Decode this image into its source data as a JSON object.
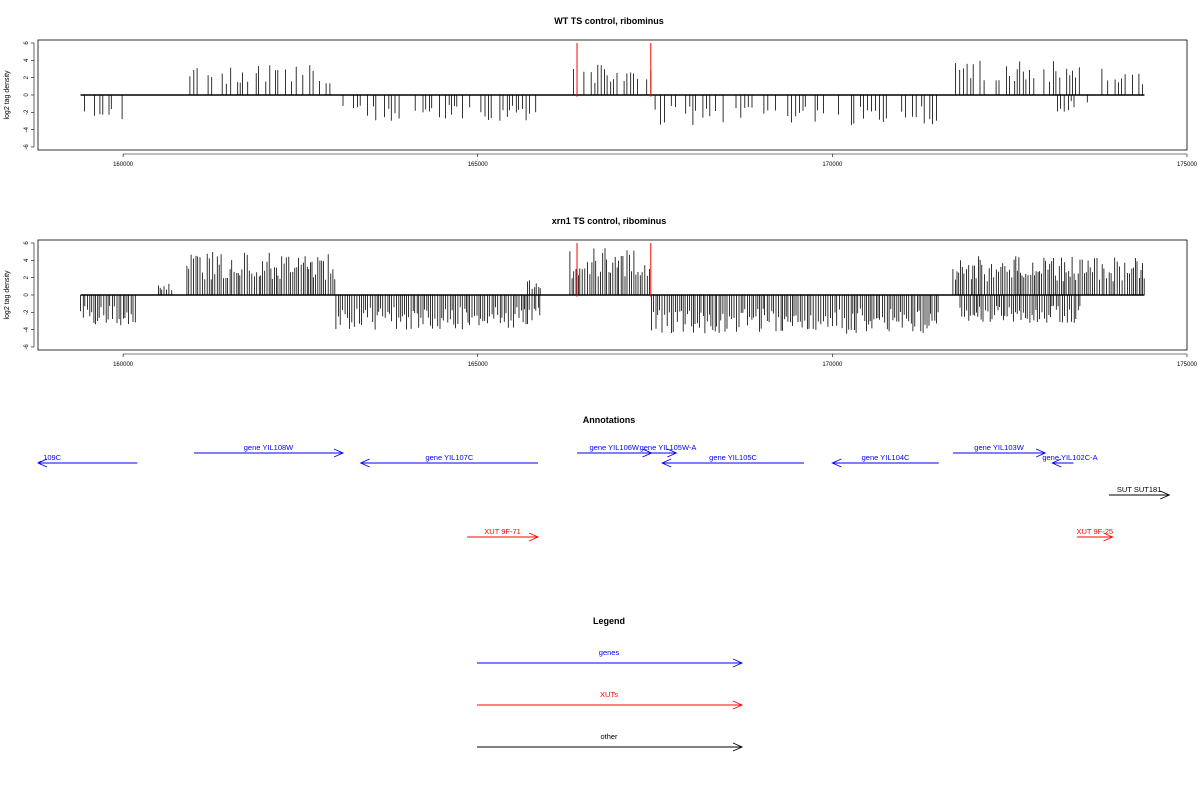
{
  "chart_data": [
    {
      "type": "bar",
      "title": "WT TS control, ribominus",
      "ylabel": "log2 tag density",
      "xlabel": "",
      "xlim": [
        158800,
        175000
      ],
      "ylim": [
        -6,
        6
      ],
      "xticks": [
        160000,
        165000,
        170000,
        175000
      ],
      "yticks": [
        -6,
        -4,
        -2,
        0,
        2,
        4,
        6
      ],
      "data_span": [
        159400,
        174400
      ],
      "highlight_positions": [
        166400,
        167440
      ],
      "highlight_color": "#ff0000",
      "bar_color": "#000000",
      "segments": [
        {
          "x0": 159400,
          "x1": 160200,
          "level": -3.5
        },
        {
          "x0": 160800,
          "x1": 163000,
          "level": 3.5
        },
        {
          "x0": 163100,
          "x1": 165900,
          "level": -3.0
        },
        {
          "x0": 166350,
          "x1": 167500,
          "level": 3.5
        },
        {
          "x0": 167500,
          "x1": 171500,
          "level": -3.5
        },
        {
          "x0": 171700,
          "x1": 173500,
          "level": 4.0
        },
        {
          "x0": 173100,
          "x1": 173600,
          "level": -2.0
        },
        {
          "x0": 173800,
          "x1": 174400,
          "level": 3.5
        }
      ]
    },
    {
      "type": "bar",
      "title": "xrn1 TS control, ribominus",
      "ylabel": "log2 tag density",
      "xlabel": "",
      "xlim": [
        158800,
        175000
      ],
      "ylim": [
        -6,
        6
      ],
      "xticks": [
        160000,
        165000,
        170000,
        175000
      ],
      "yticks": [
        -6,
        -4,
        -2,
        0,
        2,
        4,
        6
      ],
      "data_span": [
        159400,
        174400
      ],
      "highlight_positions": [
        166400,
        167440
      ],
      "highlight_color": "#ff0000",
      "bar_color": "#000000",
      "segments": [
        {
          "x0": 159400,
          "x1": 160200,
          "level": -3.5
        },
        {
          "x0": 160500,
          "x1": 160700,
          "level": 1.5
        },
        {
          "x0": 160900,
          "x1": 163000,
          "level": 5.0
        },
        {
          "x0": 163000,
          "x1": 165900,
          "level": -4.0
        },
        {
          "x0": 165700,
          "x1": 165900,
          "level": 2.0
        },
        {
          "x0": 166300,
          "x1": 167450,
          "level": 5.5
        },
        {
          "x0": 167450,
          "x1": 171500,
          "level": -4.5
        },
        {
          "x0": 171700,
          "x1": 174400,
          "level": 4.5
        },
        {
          "x0": 171800,
          "x1": 173500,
          "level": -3.5
        }
      ]
    }
  ],
  "annotations": {
    "title": "Annotations",
    "features": [
      {
        "label": "_109C",
        "start": 158800,
        "end": 160200,
        "strand": "-",
        "color": "#0000ff",
        "row": 1
      },
      {
        "label": "gene YIL108W",
        "start": 161000,
        "end": 163100,
        "strand": "+",
        "color": "#0000ff",
        "row": 0
      },
      {
        "label": "gene YIL107C",
        "start": 163350,
        "end": 165850,
        "strand": "-",
        "color": "#0000ff",
        "row": 1
      },
      {
        "label": "gene YIL106W",
        "start": 166400,
        "end": 167450,
        "strand": "+",
        "color": "#0000ff",
        "row": 0
      },
      {
        "label": "gene YIL105W-A",
        "start": 167450,
        "end": 167800,
        "strand": "+",
        "color": "#0000ff",
        "row": 0
      },
      {
        "label": "gene YIL105C",
        "start": 167600,
        "end": 169600,
        "strand": "-",
        "color": "#0000ff",
        "row": 1
      },
      {
        "label": "gene YIL104C",
        "start": 170000,
        "end": 171500,
        "strand": "-",
        "color": "#0000ff",
        "row": 1
      },
      {
        "label": "gene YIL103W",
        "start": 171700,
        "end": 173000,
        "strand": "+",
        "color": "#0000ff",
        "row": 0
      },
      {
        "label": "gene YIL102C-A",
        "start": 173100,
        "end": 173400,
        "strand": "-",
        "color": "#0000ff",
        "row": 1
      },
      {
        "label": "SUT SUT181",
        "start": 173900,
        "end": 174750,
        "strand": "+",
        "color": "#000000",
        "row": 2
      },
      {
        "label": "XUT 9F-71",
        "start": 164850,
        "end": 165850,
        "strand": "+",
        "color": "#ff0000",
        "row": 3
      },
      {
        "label": "XUT 9F-25",
        "start": 173450,
        "end": 173950,
        "strand": "+",
        "color": "#ff0000",
        "row": 3
      }
    ]
  },
  "legend": {
    "title": "Legend",
    "items": [
      {
        "label": "genes",
        "color": "#0000ff"
      },
      {
        "label": "XUTs",
        "color": "#ff0000"
      },
      {
        "label": "other",
        "color": "#000000"
      }
    ]
  }
}
